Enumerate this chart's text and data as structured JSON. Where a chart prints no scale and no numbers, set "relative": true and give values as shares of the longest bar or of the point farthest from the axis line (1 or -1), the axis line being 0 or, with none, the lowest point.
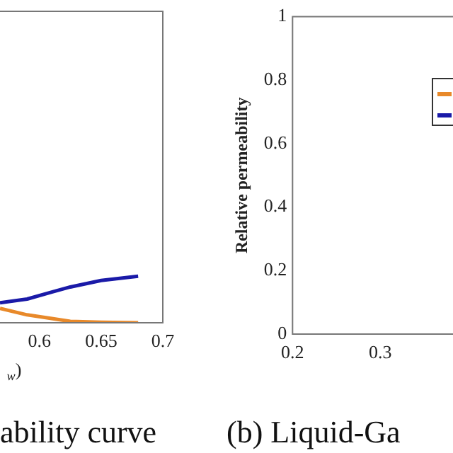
{
  "chart_data": [
    {
      "type": "line",
      "title": "ability curve",
      "xlabel": "$_{w}$)",
      "relative": true,
      "legend": false,
      "xlim": [
        0.568,
        0.7
      ],
      "xticks": [
        0.6,
        0.65,
        0.7
      ],
      "x": [
        0.568,
        0.59,
        0.61,
        0.625,
        0.65,
        0.68
      ],
      "series": [
        {
          "color": "#e8892a",
          "values": [
            0.31,
            0.17,
            0.09,
            0.03,
            0.01,
            0
          ]
        },
        {
          "color": "#1a1aa8",
          "values": [
            0.43,
            0.51,
            0.66,
            0.77,
            0.91,
            1
          ]
        }
      ]
    },
    {
      "type": "line",
      "title": "(b) Liquid-Ga",
      "ylabel": "Relative permeability",
      "xlim": [
        0.2,
        0.383
      ],
      "ylim": [
        0,
        1
      ],
      "xticks": [
        0.2,
        0.3
      ],
      "yticks": [
        0,
        0.2,
        0.4,
        0.6,
        0.8,
        1
      ]
    }
  ]
}
